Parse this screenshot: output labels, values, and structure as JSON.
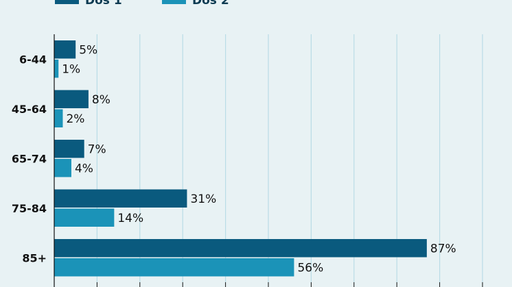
{
  "chart_data": {
    "type": "bar",
    "orientation": "horizontal",
    "categories": [
      "6-44",
      "45-64",
      "65-74",
      "75-84",
      "85+"
    ],
    "series": [
      {
        "name": "Dos 1",
        "values": [
          5,
          8,
          7,
          31,
          87
        ],
        "labels": [
          "5%",
          "8%",
          "7%",
          "31%",
          "87%"
        ],
        "color": "#0a5a7e"
      },
      {
        "name": "Dos 2",
        "values": [
          1,
          2,
          4,
          14,
          56
        ],
        "labels": [
          "1%",
          "2%",
          "4%",
          "14%",
          "56%"
        ],
        "color": "#1b93b8"
      }
    ],
    "xlim": [
      0,
      100
    ],
    "grid": true,
    "legend_position": "top-left"
  },
  "colors": {
    "background": "#e8f2f4",
    "gridline": "#b9dce6",
    "axis": "#111111"
  }
}
